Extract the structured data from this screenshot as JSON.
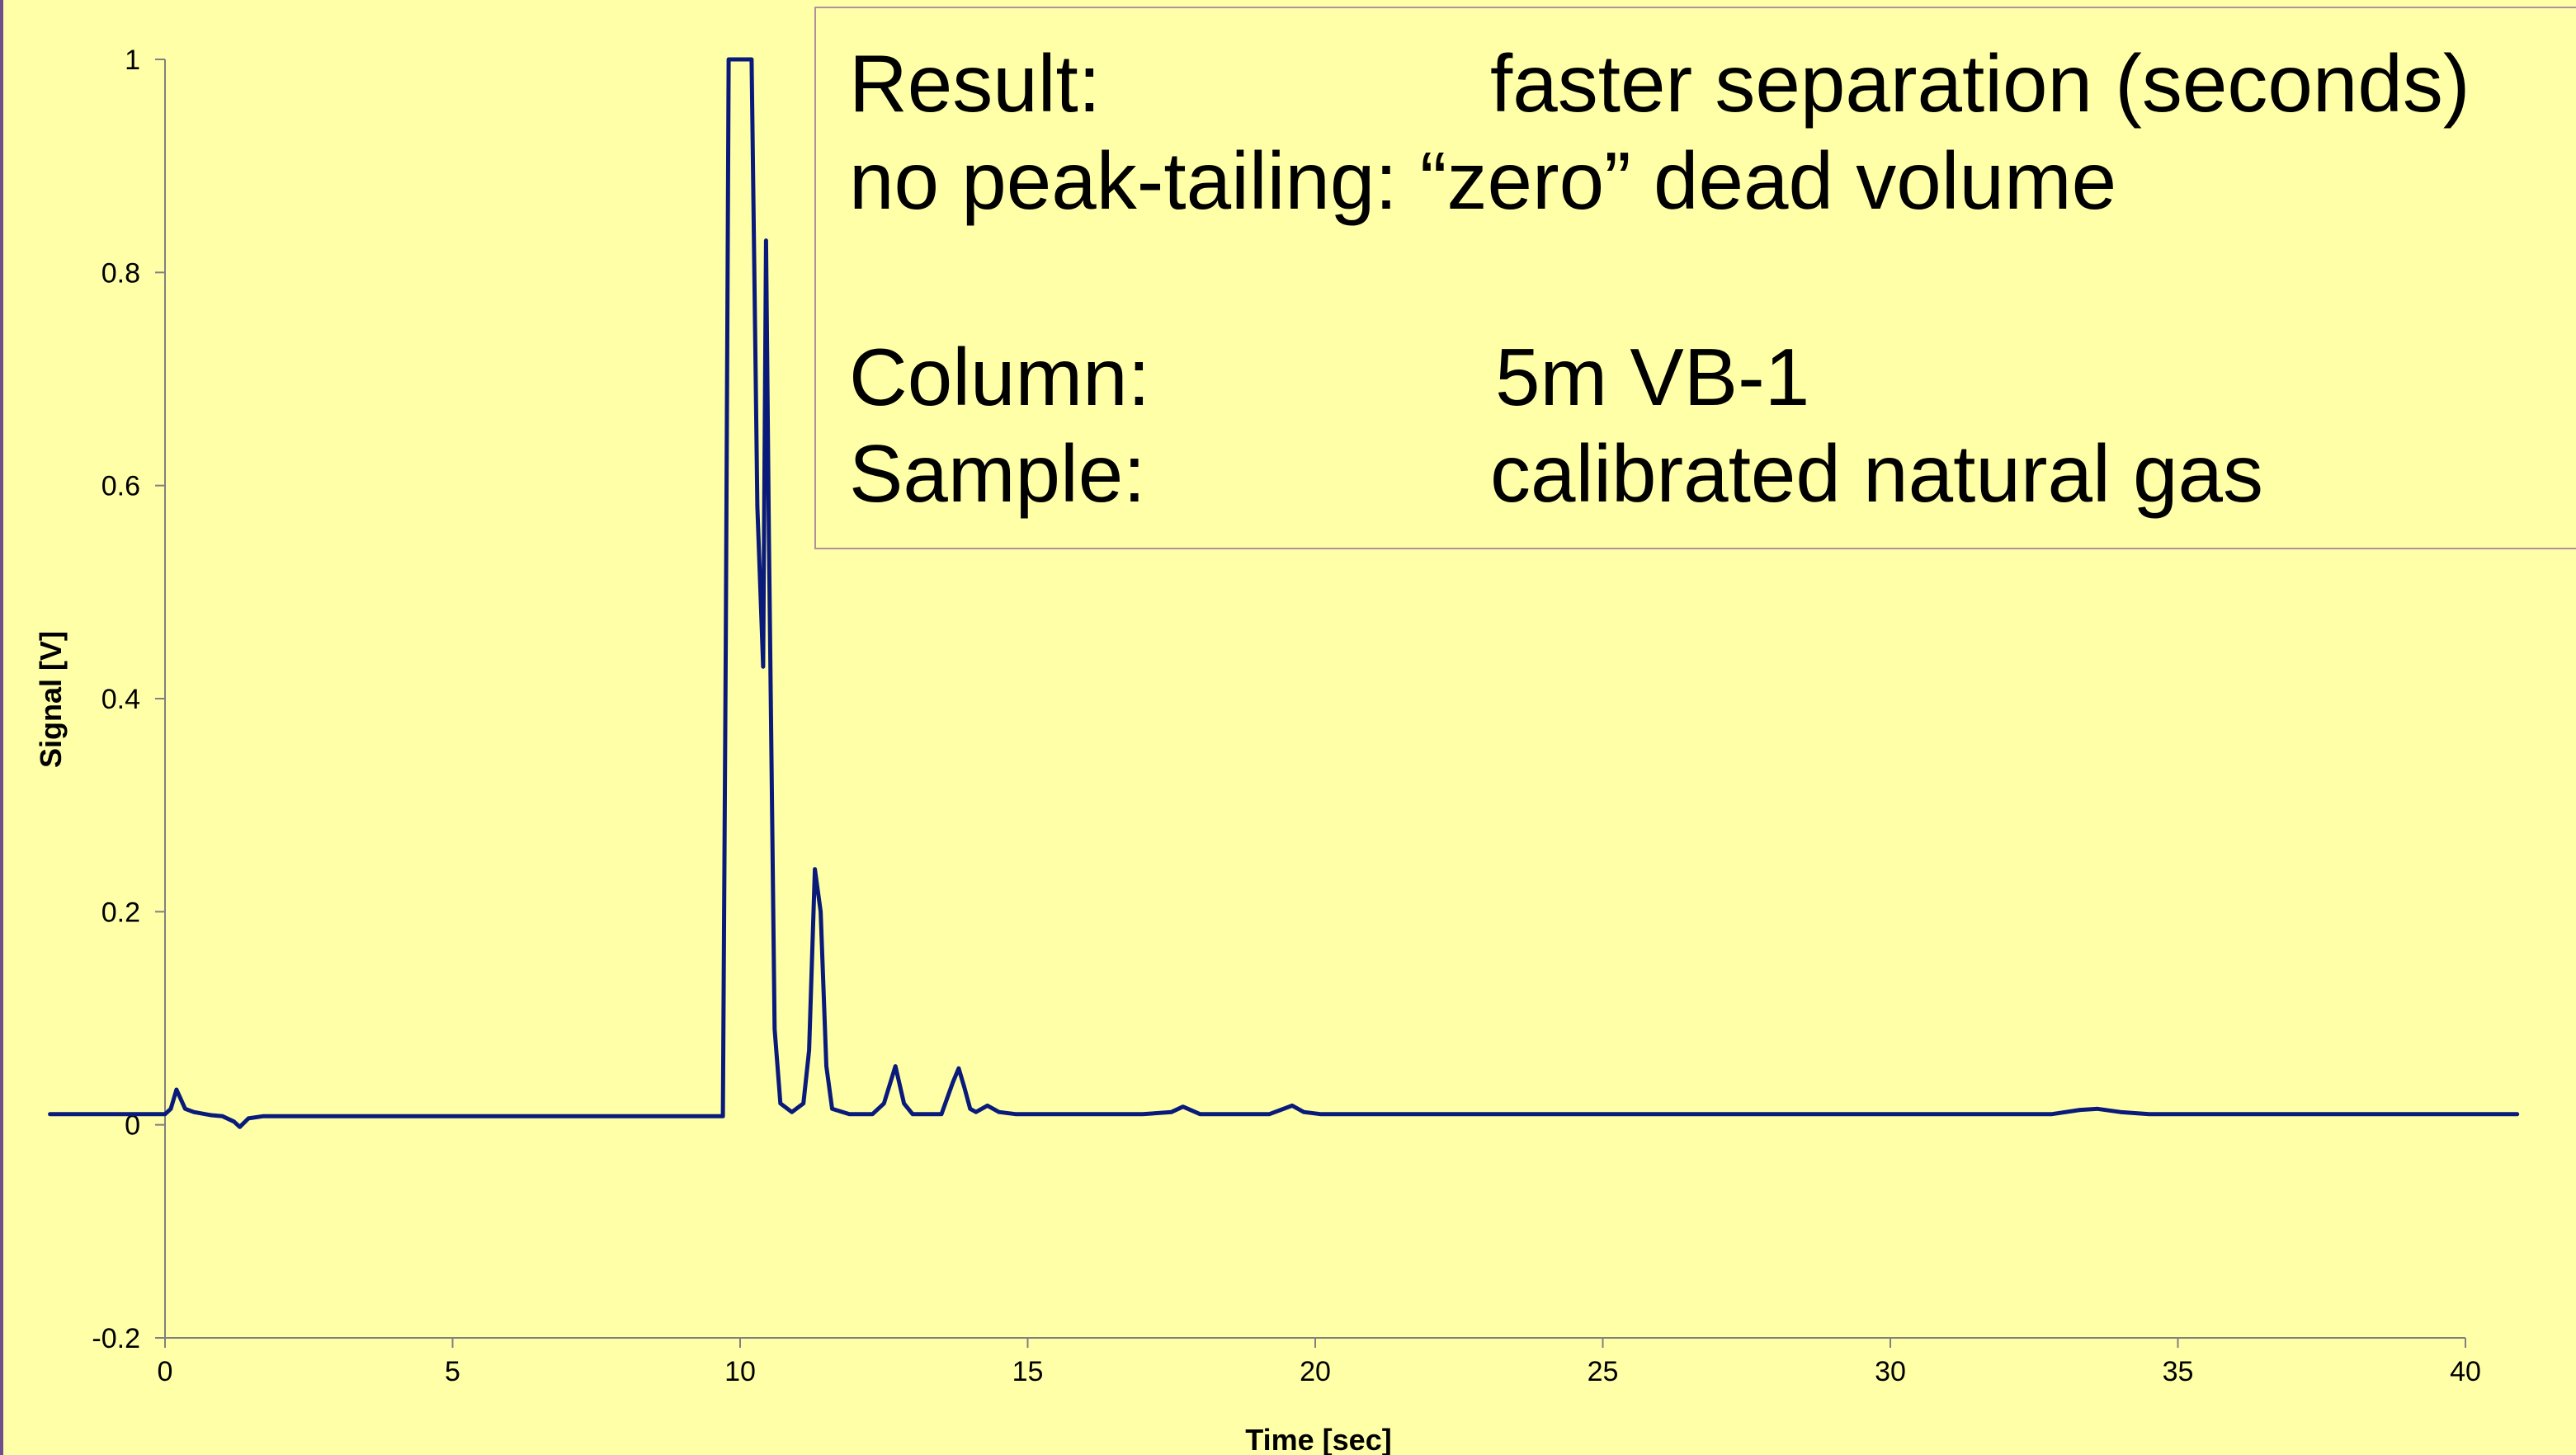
{
  "textbox": {
    "result_label": "Result:",
    "result_value": "faster separation (seconds)",
    "tailing_line": "no peak-tailing: “zero” dead volume",
    "column_label": "Column:",
    "column_value": "5m VB-1",
    "sample_label": "Sample:",
    "sample_value": "calibrated natural gas"
  },
  "colors": {
    "background": "#FFFFA8",
    "series": "#0A1A7A",
    "axis": "#808080",
    "border": "#6E4E8C"
  },
  "chart_data": {
    "type": "line",
    "title": "",
    "xlabel": "Time [sec]",
    "ylabel": "Signal [V]",
    "xlim": [
      0,
      40
    ],
    "ylim": [
      -0.2,
      1
    ],
    "xticks": [
      "0",
      "5",
      "10",
      "15",
      "20",
      "25",
      "30",
      "35",
      "40"
    ],
    "yticks": [
      "-0.2",
      "0",
      "0.2",
      "0.4",
      "0.6",
      "0.8",
      "1"
    ],
    "grid": false,
    "legend": "none",
    "series": [
      {
        "x": [
          -2.0,
          0.0,
          0.1,
          0.2,
          0.35,
          0.5,
          0.8,
          1.0,
          1.2,
          1.3,
          1.45,
          1.7,
          2.5,
          5.0,
          7.5,
          9.7,
          9.75,
          9.8,
          9.85,
          9.9,
          10.15,
          10.2,
          10.3,
          10.4,
          10.45,
          10.5,
          10.6,
          10.7,
          10.9,
          11.1,
          11.2,
          11.3,
          11.4,
          11.5,
          11.6,
          11.9,
          12.3,
          12.5,
          12.7,
          12.85,
          13.0,
          13.5,
          13.7,
          13.8,
          13.9,
          14.0,
          14.1,
          14.3,
          14.5,
          14.8,
          15.5,
          17.0,
          17.5,
          17.7,
          18.0,
          18.5,
          19.2,
          19.6,
          19.8,
          20.1,
          21.0,
          25.0,
          30.0,
          32.8,
          33.3,
          33.6,
          34.0,
          34.5,
          36.0,
          38.0,
          40.0,
          40.9
        ],
        "y": [
          0.01,
          0.01,
          0.015,
          0.033,
          0.015,
          0.012,
          0.009,
          0.008,
          0.003,
          -0.002,
          0.006,
          0.008,
          0.008,
          0.008,
          0.008,
          0.008,
          0.45,
          1.0,
          1.0,
          1.0,
          1.0,
          1.0,
          0.58,
          0.43,
          0.83,
          0.55,
          0.09,
          0.02,
          0.012,
          0.02,
          0.07,
          0.24,
          0.2,
          0.055,
          0.015,
          0.01,
          0.01,
          0.02,
          0.055,
          0.02,
          0.01,
          0.01,
          0.04,
          0.053,
          0.035,
          0.015,
          0.012,
          0.018,
          0.012,
          0.01,
          0.01,
          0.01,
          0.012,
          0.017,
          0.01,
          0.01,
          0.01,
          0.018,
          0.012,
          0.01,
          0.01,
          0.01,
          0.01,
          0.01,
          0.014,
          0.015,
          0.012,
          0.01,
          0.01,
          0.01,
          0.01,
          0.01
        ]
      }
    ]
  }
}
